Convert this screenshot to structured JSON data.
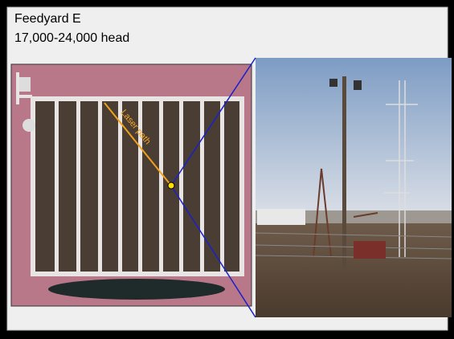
{
  "header": {
    "title": "Feedyard E",
    "subtitle": "17,000-24,000 head"
  },
  "annotation": {
    "label": "Laser path"
  }
}
